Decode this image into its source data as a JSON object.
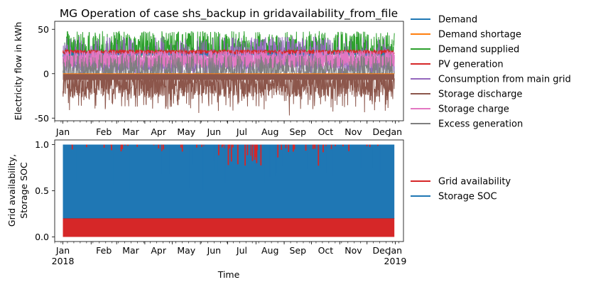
{
  "colors": {
    "demand": "#1f77b4",
    "demand_shortage": "#ff7f0e",
    "demand_supplied": "#2ca02c",
    "pv_generation": "#d62728",
    "consumption_main_grid": "#9467bd",
    "storage_discharge": "#8c564b",
    "storage_charge": "#e377c2",
    "excess_generation": "#7f7f7f",
    "grid_availability": "#d62728",
    "storage_soc": "#1f77b4"
  },
  "chart_data": [
    {
      "type": "line",
      "title": "MG Operation of case shs_backup in gridavailability_from_file",
      "xlabel": "",
      "ylabel": "Electricity flow in kWh",
      "xlim": [
        "2017-12-23",
        "2019-01-10"
      ],
      "ylim": [
        -53,
        59
      ],
      "yticks": [
        -50,
        0,
        50
      ],
      "xticks": [
        "Jan",
        "Feb",
        "Mar",
        "Apr",
        "May",
        "Jun",
        "Jul",
        "Aug",
        "Sep",
        "Oct",
        "Nov",
        "Dec",
        "Jan"
      ],
      "x_range": [
        "2018-01-01",
        "2018-12-31"
      ],
      "legend_position": "outside-right",
      "series": [
        {
          "name": "Demand",
          "color_key": "demand",
          "typical_range": [
            20,
            25
          ]
        },
        {
          "name": "Demand shortage",
          "color_key": "demand_shortage",
          "typical_range": [
            0,
            0
          ]
        },
        {
          "name": "Demand supplied",
          "color_key": "demand_supplied",
          "typical_range": [
            0,
            48
          ],
          "peak": 48
        },
        {
          "name": "PV generation",
          "color_key": "pv_generation",
          "typical_range": [
            0,
            27
          ]
        },
        {
          "name": "Consumption from main grid",
          "color_key": "consumption_main_grid",
          "typical_range": [
            0,
            45
          ],
          "peak": 52
        },
        {
          "name": "Storage discharge",
          "color_key": "storage_discharge",
          "typical_range": [
            -48,
            0
          ],
          "min": -48
        },
        {
          "name": "Storage charge",
          "color_key": "storage_charge",
          "typical_range": [
            0,
            27
          ]
        },
        {
          "name": "Excess generation",
          "color_key": "excess_generation",
          "typical_range": [
            0,
            22
          ]
        }
      ]
    },
    {
      "type": "line",
      "title": "",
      "xlabel": "Time",
      "ylabel": "Grid availability,\nStorage SOC",
      "ylabel_lines": [
        "Grid availability,",
        "Storage SOC"
      ],
      "xlim": [
        "2017-12-23",
        "2019-01-10"
      ],
      "ylim": [
        -0.05,
        1.05
      ],
      "yticks": [
        0.0,
        0.5,
        1.0
      ],
      "ytick_labels": [
        "0.0",
        "0.5",
        "1.0"
      ],
      "xticks": [
        "Jan",
        "Feb",
        "Mar",
        "Apr",
        "May",
        "Jun",
        "Jul",
        "Aug",
        "Sep",
        "Oct",
        "Nov",
        "Dec",
        "Jan"
      ],
      "year_labels": [
        "2018",
        "2019"
      ],
      "x_range": [
        "2018-01-01",
        "2018-12-31"
      ],
      "legend_position": "outside-right",
      "series": [
        {
          "name": "Grid availability",
          "color_key": "grid_availability",
          "values_range": [
            0,
            1
          ]
        },
        {
          "name": "Storage SOC",
          "color_key": "storage_soc",
          "values_range": [
            0.2,
            1.0
          ],
          "min": 0.2,
          "max": 1.0
        }
      ]
    }
  ]
}
